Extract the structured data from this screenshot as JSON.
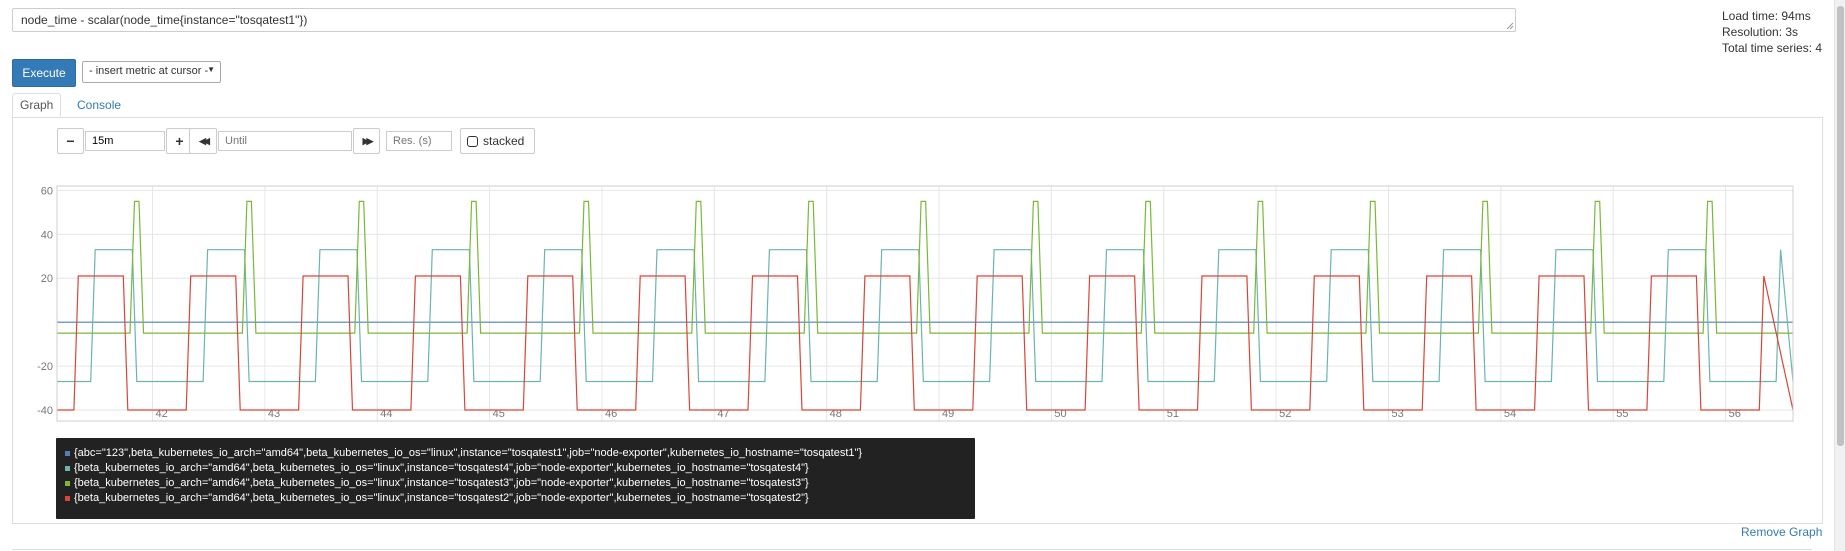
{
  "query": {
    "expression": "node_time - scalar(node_time{instance=\"tosqatest1\"})"
  },
  "stats": {
    "load_time": "Load time: 94ms",
    "resolution": "Resolution: 3s",
    "total_series": "Total time series: 4"
  },
  "toolbar": {
    "execute_label": "Execute",
    "metric_select_value": "- insert metric at cursor -"
  },
  "tabs": {
    "graph": "Graph",
    "console": "Console"
  },
  "graph_controls": {
    "minus": "−",
    "range_value": "15m",
    "plus": "+",
    "back": "◀◀",
    "until_placeholder": "Until",
    "forward": "▶▶",
    "res_placeholder": "Res. (s)",
    "stacked_label": "stacked"
  },
  "colors": {
    "blue": "#4d7fb8",
    "teal": "#6ab5ad",
    "green": "#7ab838",
    "red": "#d94536",
    "grid": "#e6e6e6",
    "axis_text": "#777777"
  },
  "chart_data": {
    "type": "line",
    "title": "",
    "xlabel": "",
    "ylabel": "",
    "x_ticks": [
      "42",
      "43",
      "44",
      "45",
      "46",
      "47",
      "48",
      "49",
      "50",
      "51",
      "52",
      "53",
      "54",
      "55",
      "56"
    ],
    "y_ticks": [
      60,
      40,
      20,
      -20,
      -40
    ],
    "xlim": [
      41.15,
      56.6
    ],
    "ylim": [
      -45,
      62
    ],
    "grid": true,
    "series": [
      {
        "name": "{abc=\"123\",beta_kubernetes_io_arch=\"amd64\",beta_kubernetes_io_os=\"linux\",instance=\"tosqatest1\",job=\"node-exporter\",kubernetes_io_hostname=\"tosqatest1\"}",
        "color": "#4d7fb8",
        "pattern": "constant",
        "value": 0
      },
      {
        "name": "{beta_kubernetes_io_arch=\"amd64\",beta_kubernetes_io_os=\"linux\",instance=\"tosqatest4\",job=\"node-exporter\",kubernetes_io_hostname=\"tosqatest4\"}",
        "color": "#6ab5ad",
        "pattern": "periodic",
        "period": 1,
        "low": -27,
        "high": 33,
        "rise_at": 41.45,
        "fall_at": 41.82
      },
      {
        "name": "{beta_kubernetes_io_arch=\"amd64\",beta_kubernetes_io_os=\"linux\",instance=\"tosqatest3\",job=\"node-exporter\",kubernetes_io_hostname=\"tosqatest3\"}",
        "color": "#7ab838",
        "pattern": "periodic",
        "period": 1,
        "low": -5,
        "high": 55,
        "rise_at": 41.8,
        "fall_at": 41.88
      },
      {
        "name": "{beta_kubernetes_io_arch=\"amd64\",beta_kubernetes_io_os=\"linux\",instance=\"tosqatest2\",job=\"node-exporter\",kubernetes_io_hostname=\"tosqatest2\"}",
        "color": "#d94536",
        "pattern": "periodic",
        "period": 1,
        "low": -40,
        "high": 21,
        "rise_at": 41.3,
        "fall_at": 41.74
      }
    ]
  },
  "legend": [
    "{abc=\"123\",beta_kubernetes_io_arch=\"amd64\",beta_kubernetes_io_os=\"linux\",instance=\"tosqatest1\",job=\"node-exporter\",kubernetes_io_hostname=\"tosqatest1\"}",
    "{beta_kubernetes_io_arch=\"amd64\",beta_kubernetes_io_os=\"linux\",instance=\"tosqatest4\",job=\"node-exporter\",kubernetes_io_hostname=\"tosqatest4\"}",
    "{beta_kubernetes_io_arch=\"amd64\",beta_kubernetes_io_os=\"linux\",instance=\"tosqatest3\",job=\"node-exporter\",kubernetes_io_hostname=\"tosqatest3\"}",
    "{beta_kubernetes_io_arch=\"amd64\",beta_kubernetes_io_os=\"linux\",instance=\"tosqatest2\",job=\"node-exporter\",kubernetes_io_hostname=\"tosqatest2\"}"
  ],
  "remove_graph_label": "Remove Graph"
}
